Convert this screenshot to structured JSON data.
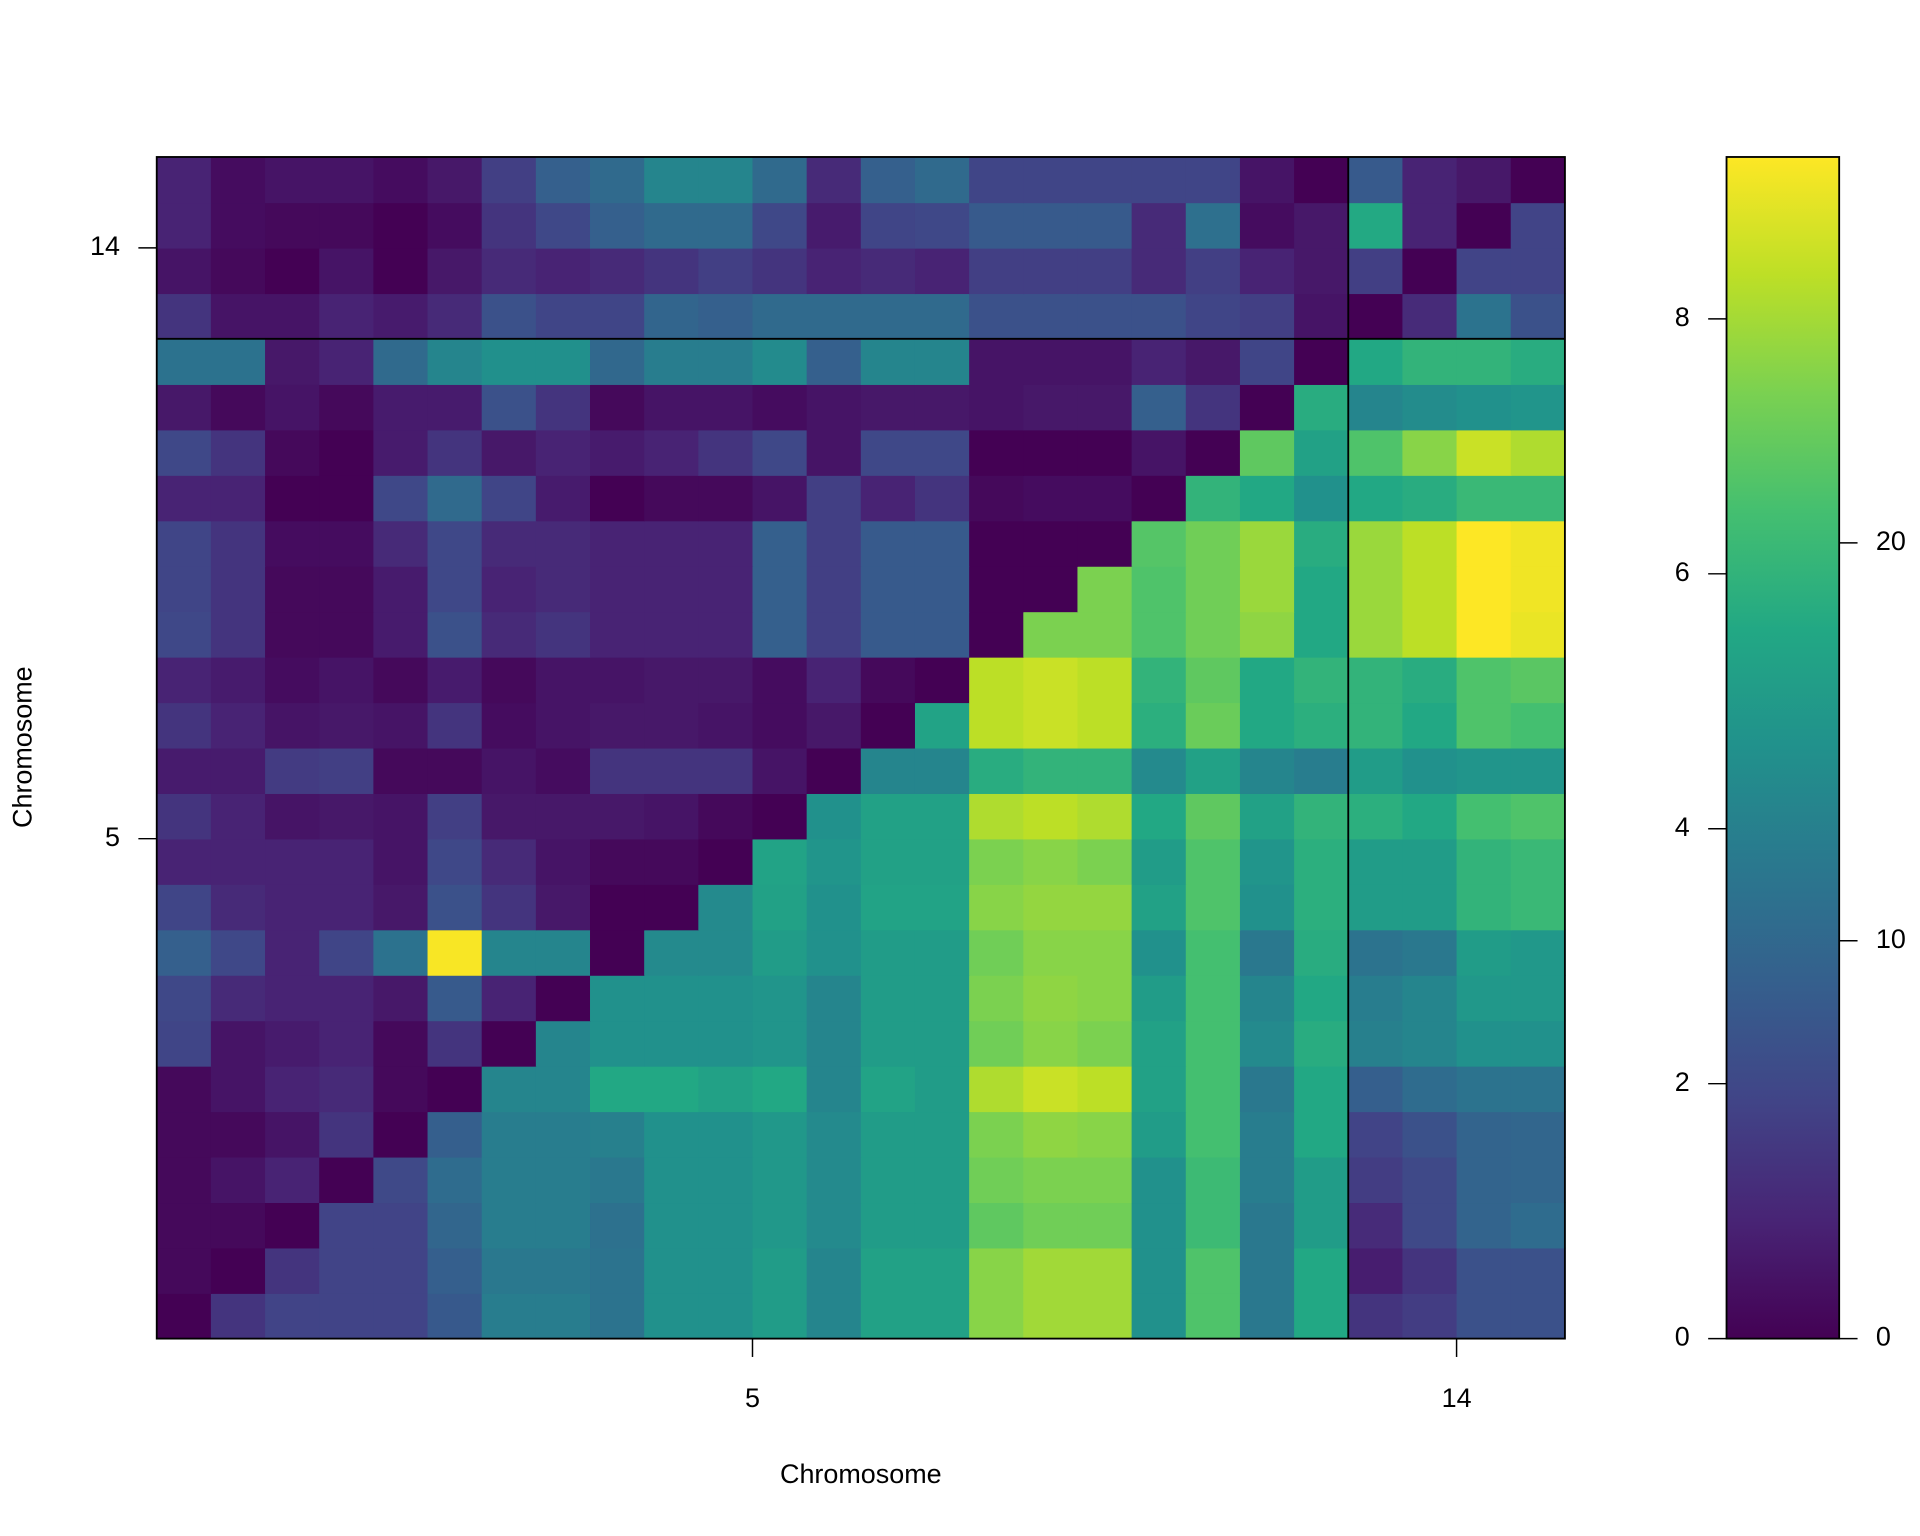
{
  "chart_data": {
    "type": "heatmap",
    "x_label": "Chromosome",
    "y_label": "Chromosome",
    "chromosomes": [
      "5",
      "14"
    ],
    "chromosome_cells": [
      22,
      4
    ],
    "colormap": "viridis",
    "zlim": [
      0,
      9.27
    ],
    "zticks": [
      0,
      2,
      4,
      6,
      8
    ],
    "z2lim": [
      0,
      29.7
    ],
    "z2ticks": [
      0,
      10,
      20
    ],
    "z": [
      [
        0,
        4.5,
        5.9,
        5.9,
        5.9,
        8.3,
        12.5,
        12.5,
        11.3,
        14.9,
        14.9,
        16.3,
        13.4,
        16.9,
        16.9,
        24.4,
        25.5,
        25.5,
        14.9,
        21.4,
        11.9,
        17.8,
        4.5,
        5.3,
        7.4,
        7.4
      ],
      [
        0.2,
        0,
        4.5,
        5.9,
        5.9,
        8.9,
        11.9,
        11.9,
        11.3,
        14.9,
        14.9,
        16.3,
        13.4,
        16.9,
        16.9,
        24.4,
        25.5,
        25.5,
        14.9,
        21.4,
        11.9,
        17.8,
        2.4,
        4.5,
        7.4,
        7.4
      ],
      [
        0.2,
        0.2,
        0,
        5.9,
        5.9,
        9.8,
        12.5,
        12.5,
        11.0,
        14.9,
        14.9,
        15.7,
        14.0,
        16.3,
        16.3,
        22.3,
        23.2,
        23.2,
        14.9,
        20.2,
        11.9,
        16.3,
        3.6,
        6.5,
        9.5,
        10.4
      ],
      [
        0.2,
        0.5,
        0.9,
        0,
        6.5,
        10.4,
        12.5,
        12.5,
        11.9,
        14.9,
        14.9,
        15.7,
        14.0,
        16.3,
        16.3,
        23.2,
        23.8,
        23.8,
        14.9,
        20.2,
        12.5,
        16.3,
        5.3,
        6.5,
        9.5,
        9.8
      ],
      [
        0.2,
        0.2,
        0.5,
        1.4,
        0,
        8.9,
        12.5,
        12.5,
        12.8,
        14.9,
        14.9,
        15.7,
        14.0,
        16.3,
        16.3,
        23.8,
        24.7,
        24.4,
        16.3,
        20.8,
        12.5,
        17.8,
        5.9,
        7.4,
        9.5,
        9.8
      ],
      [
        0.2,
        0.5,
        0.9,
        1.1,
        0.2,
        0,
        13.4,
        13.4,
        17.8,
        17.8,
        16.9,
        17.8,
        13.4,
        17.2,
        16.3,
        26.1,
        27.3,
        26.7,
        16.9,
        20.8,
        11.9,
        17.8,
        8.9,
        10.4,
        11.3,
        11.3
      ],
      [
        1.9,
        0.5,
        0.7,
        0.9,
        0.2,
        1.4,
        0,
        13.4,
        14.9,
        14.9,
        14.9,
        15.4,
        13.4,
        16.3,
        16.3,
        23.2,
        24.4,
        23.8,
        16.9,
        20.8,
        14.0,
        18.4,
        12.8,
        13.4,
        14.9,
        14.9
      ],
      [
        2.0,
        1.1,
        0.9,
        0.9,
        0.6,
        2.6,
        0.9,
        0,
        14.9,
        14.9,
        14.9,
        15.4,
        13.4,
        16.3,
        16.3,
        23.8,
        24.7,
        24.4,
        16.3,
        20.8,
        13.4,
        17.8,
        12.5,
        13.4,
        15.7,
        15.7
      ],
      [
        2.8,
        2.0,
        0.9,
        1.9,
        3.5,
        9.2,
        4.2,
        4.2,
        0,
        14.0,
        14.0,
        16.3,
        14.9,
        16.3,
        16.3,
        23.2,
        24.4,
        24.4,
        14.9,
        20.8,
        11.9,
        18.4,
        11.3,
        11.9,
        16.3,
        15.7
      ],
      [
        1.9,
        1.1,
        0.9,
        0.9,
        0.6,
        2.3,
        1.4,
        0.6,
        0.0,
        0,
        14.0,
        16.9,
        14.9,
        17.2,
        17.2,
        24.4,
        24.9,
        24.9,
        16.9,
        21.4,
        14.9,
        18.7,
        16.3,
        16.3,
        19.3,
        19.9
      ],
      [
        0.9,
        0.9,
        0.9,
        0.9,
        0.5,
        2.0,
        1.1,
        0.5,
        0.2,
        0.2,
        0,
        17.2,
        15.4,
        16.9,
        16.9,
        23.8,
        24.4,
        23.8,
        16.3,
        21.4,
        15.4,
        18.7,
        16.3,
        16.3,
        19.3,
        19.9
      ],
      [
        1.4,
        0.9,
        0.5,
        0.6,
        0.5,
        1.7,
        0.6,
        0.6,
        0.6,
        0.5,
        0.2,
        0,
        14.9,
        16.9,
        16.9,
        26.1,
        26.7,
        26.1,
        17.8,
        22.3,
        16.9,
        19.3,
        18.7,
        17.8,
        20.8,
        21.4
      ],
      [
        0.7,
        0.7,
        1.6,
        1.7,
        0.2,
        0.2,
        0.5,
        0.3,
        1.4,
        1.4,
        1.4,
        0.5,
        0,
        13.4,
        13.4,
        18.4,
        19.3,
        19.3,
        14.0,
        16.9,
        13.4,
        12.5,
        16.3,
        14.9,
        15.4,
        15.4
      ],
      [
        1.4,
        0.9,
        0.5,
        0.6,
        0.5,
        1.4,
        0.3,
        0.5,
        0.6,
        0.6,
        0.5,
        0.3,
        0.6,
        0,
        17.2,
        26.7,
        27.3,
        26.7,
        18.7,
        22.9,
        17.8,
        18.7,
        19.3,
        17.8,
        21.4,
        20.8
      ],
      [
        0.9,
        0.7,
        0.3,
        0.5,
        0.2,
        0.7,
        0.2,
        0.5,
        0.5,
        0.6,
        0.6,
        0.3,
        0.9,
        0.2,
        0,
        26.7,
        27.3,
        26.7,
        19.3,
        22.3,
        17.8,
        19.3,
        19.3,
        18.4,
        21.4,
        22.0
      ],
      [
        2.0,
        1.4,
        0.2,
        0.2,
        0.7,
        2.3,
        1.1,
        1.4,
        0.9,
        0.9,
        0.9,
        2.8,
        1.7,
        2.6,
        2.6,
        0,
        23.8,
        23.8,
        21.4,
        23.2,
        24.7,
        17.8,
        25.2,
        26.7,
        29.7,
        28.8
      ],
      [
        1.9,
        1.4,
        0.2,
        0.2,
        0.7,
        2.0,
        0.9,
        1.1,
        0.9,
        0.9,
        0.9,
        2.8,
        1.7,
        2.6,
        2.6,
        0.0,
        0,
        23.8,
        21.4,
        23.2,
        25.2,
        17.8,
        25.2,
        26.7,
        29.7,
        29.1
      ],
      [
        1.9,
        1.4,
        0.3,
        0.3,
        1.1,
        2.0,
        1.1,
        1.1,
        0.9,
        0.9,
        0.9,
        2.8,
        1.7,
        2.6,
        2.6,
        0.0,
        0.0,
        0,
        21.7,
        23.2,
        25.2,
        18.4,
        25.2,
        26.7,
        29.7,
        29.1
      ],
      [
        0.9,
        0.9,
        0.0,
        0.0,
        2.0,
        3.2,
        1.9,
        0.7,
        0.0,
        0.2,
        0.2,
        0.5,
        1.7,
        0.9,
        1.4,
        0.2,
        0.3,
        0.3,
        0,
        19.3,
        17.8,
        14.9,
        17.8,
        18.4,
        19.9,
        19.9
      ],
      [
        2.0,
        1.4,
        0.2,
        0.0,
        0.7,
        1.4,
        0.6,
        0.9,
        0.7,
        0.9,
        1.4,
        2.0,
        0.5,
        2.0,
        2.0,
        0.0,
        0.0,
        0.0,
        0.5,
        0,
        22.3,
        16.9,
        21.4,
        24.4,
        27.3,
        26.1
      ],
      [
        0.6,
        0.2,
        0.5,
        0.2,
        0.7,
        0.7,
        2.3,
        1.4,
        0.2,
        0.5,
        0.5,
        0.3,
        0.5,
        0.6,
        0.6,
        0.5,
        0.6,
        0.6,
        2.8,
        1.4,
        0,
        18.4,
        13.4,
        14.3,
        14.9,
        15.4
      ],
      [
        3.5,
        3.5,
        0.6,
        0.9,
        3.2,
        4.2,
        4.6,
        4.6,
        3.1,
        3.9,
        3.9,
        4.4,
        2.8,
        4.2,
        4.2,
        0.5,
        0.5,
        0.5,
        0.9,
        0.6,
        1.9,
        0,
        17.8,
        19.3,
        19.3,
        18.4
      ],
      [
        1.4,
        0.5,
        0.5,
        0.9,
        0.7,
        1.1,
        2.3,
        1.9,
        1.9,
        3.0,
        2.8,
        3.2,
        3.2,
        3.2,
        3.2,
        2.3,
        2.3,
        2.3,
        2.3,
        1.9,
        1.7,
        0.5,
        0,
        3.6,
        11.3,
        7.4
      ],
      [
        0.5,
        0.2,
        0.0,
        0.5,
        0.0,
        0.6,
        1.1,
        0.9,
        1.1,
        1.4,
        1.7,
        1.4,
        0.9,
        1.1,
        0.9,
        1.7,
        1.7,
        1.7,
        1.1,
        1.7,
        0.9,
        0.6,
        1.7,
        0,
        5.9,
        5.9
      ],
      [
        0.9,
        0.3,
        0.2,
        0.2,
        0.0,
        0.3,
        1.4,
        2.0,
        2.8,
        3.2,
        3.2,
        2.0,
        0.7,
        1.9,
        2.0,
        2.6,
        2.6,
        2.6,
        1.1,
        3.4,
        0.3,
        0.6,
        5.6,
        0.9,
        0,
        5.9
      ],
      [
        0.9,
        0.3,
        0.5,
        0.5,
        0.3,
        0.6,
        1.7,
        2.8,
        3.2,
        4.2,
        4.2,
        3.2,
        1.1,
        2.8,
        3.2,
        1.9,
        1.9,
        1.9,
        1.9,
        1.9,
        0.5,
        0.0,
        2.6,
        0.9,
        0.6,
        0
      ]
    ]
  }
}
